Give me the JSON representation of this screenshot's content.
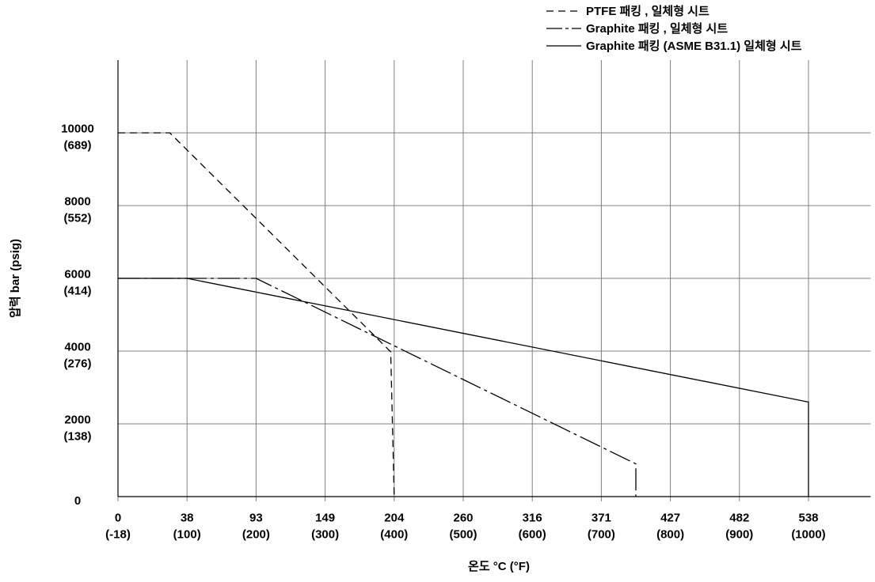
{
  "chart_data": {
    "type": "line",
    "x_label": "온도 °C (°F)",
    "y_label": "압력 bar (psig)",
    "xlim": [
      0,
      1090
    ],
    "ylim": [
      0,
      12000
    ],
    "xticks": [
      {
        "value": 0,
        "label": "0\n(-18)"
      },
      {
        "value": 100,
        "label": "38\n(100)"
      },
      {
        "value": 200,
        "label": "93\n(200)"
      },
      {
        "value": 300,
        "label": "149\n(300)"
      },
      {
        "value": 400,
        "label": "204\n(400)"
      },
      {
        "value": 500,
        "label": "260\n(500)"
      },
      {
        "value": 600,
        "label": "316\n(600)"
      },
      {
        "value": 700,
        "label": "371\n(700)"
      },
      {
        "value": 800,
        "label": "427\n(800)"
      },
      {
        "value": 900,
        "label": "482\n(900)"
      },
      {
        "value": 1000,
        "label": "538\n(1000)"
      }
    ],
    "yticks": [
      0,
      {
        "value": 2000,
        "label": "2000\n(138)"
      },
      {
        "value": 4000,
        "label": "4000\n(276)"
      },
      {
        "value": 6000,
        "label": "6000\n(414)"
      },
      {
        "value": 8000,
        "label": "8000\n(552)"
      },
      {
        "value": 10000,
        "label": "10000\n(689)"
      }
    ],
    "grid": true,
    "legend": "top-right",
    "series": [
      {
        "name": "PTFE 패킹 , 일체형 시트",
        "color": "#000000",
        "dash": "dashed",
        "x": [
          0,
          75,
          395,
          400
        ],
        "values": [
          10000,
          10000,
          3980,
          0
        ]
      },
      {
        "name": "Graphite 패킹 , 일체형 시트",
        "color": "#000000",
        "dash": "dash-dot",
        "x": [
          0,
          200,
          750,
          750
        ],
        "values": [
          6000,
          6000,
          900,
          0
        ]
      },
      {
        "name": "Graphite 패킹 (ASME B31.1) 일체형 시트",
        "color": "#000000",
        "dash": "solid",
        "x": [
          0,
          100,
          1000,
          1000
        ],
        "values": [
          6000,
          6000,
          2600,
          0
        ]
      }
    ]
  }
}
